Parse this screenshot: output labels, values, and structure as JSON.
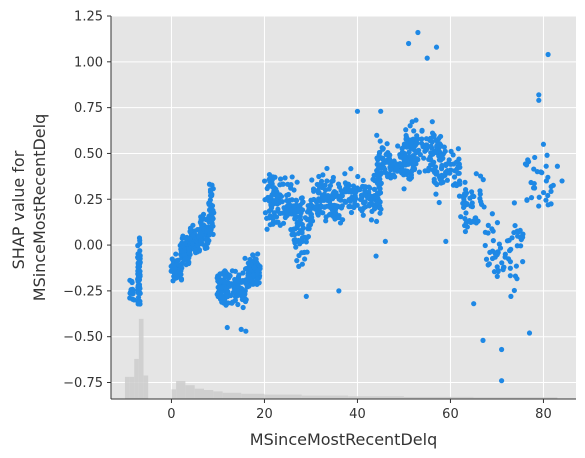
{
  "chart_data": {
    "type": "scatter",
    "xlabel": "MSinceMostRecentDelq",
    "ylabel": [
      "SHAP value for",
      "MSinceMostRecentDelq"
    ],
    "xlim": [
      -13,
      87
    ],
    "ylim": [
      -0.84,
      1.25
    ],
    "xticks": [
      0,
      20,
      40,
      60,
      80
    ],
    "xtick_labels": [
      "0",
      "20",
      "40",
      "60",
      "80"
    ],
    "yticks": [
      -0.75,
      -0.5,
      -0.25,
      0.0,
      0.25,
      0.5,
      0.75,
      1.0,
      1.25
    ],
    "ytick_labels": [
      "−0.75",
      "−0.50",
      "−0.25",
      "0.00",
      "0.25",
      "0.50",
      "0.75",
      "1.00",
      "1.25"
    ],
    "grid": true,
    "background": "#e5e5e5",
    "point_color": "#1e88e5",
    "hist_color": "#cccccc",
    "clusters": [
      {
        "x": [
          -9,
          -8
        ],
        "y_range": [
          -0.34,
          -0.17
        ],
        "count": 18
      },
      {
        "x": [
          -7,
          -7
        ],
        "y_range": [
          -0.38,
          0.08
        ],
        "count": 70
      },
      {
        "x": [
          0,
          2
        ],
        "y_range": [
          -0.22,
          -0.05
        ],
        "count": 50
      },
      {
        "x": [
          2,
          4
        ],
        "y_range": [
          -0.12,
          0.08
        ],
        "count": 70
      },
      {
        "x": [
          4,
          6
        ],
        "y_range": [
          -0.08,
          0.12
        ],
        "count": 70
      },
      {
        "x": [
          6,
          8
        ],
        "y_range": [
          -0.04,
          0.18
        ],
        "count": 70
      },
      {
        "x": [
          8,
          9
        ],
        "y_range": [
          0.0,
          0.36
        ],
        "count": 40
      },
      {
        "x": [
          10,
          12
        ],
        "y_range": [
          -0.36,
          -0.1
        ],
        "count": 70
      },
      {
        "x": [
          12,
          16
        ],
        "y_range": [
          -0.38,
          -0.12
        ],
        "count": 70
      },
      {
        "x": [
          16,
          19
        ],
        "y_range": [
          -0.28,
          -0.02
        ],
        "count": 70
      },
      {
        "x": [
          20,
          26
        ],
        "y_range": [
          0.05,
          0.42
        ],
        "count": 110
      },
      {
        "x": [
          26,
          30
        ],
        "y_range": [
          -0.12,
          0.36
        ],
        "count": 80
      },
      {
        "x": [
          30,
          37
        ],
        "y_range": [
          0.08,
          0.42
        ],
        "count": 110
      },
      {
        "x": [
          37,
          45
        ],
        "y_range": [
          0.1,
          0.45
        ],
        "count": 110
      },
      {
        "x": [
          44,
          52
        ],
        "y_range": [
          0.28,
          0.62
        ],
        "count": 110
      },
      {
        "x": [
          50,
          58
        ],
        "y_range": [
          0.35,
          0.7
        ],
        "count": 100
      },
      {
        "x": [
          56,
          62
        ],
        "y_range": [
          0.2,
          0.6
        ],
        "count": 70
      },
      {
        "x": [
          62,
          67
        ],
        "y_range": [
          0.05,
          0.45
        ],
        "count": 50
      },
      {
        "x": [
          67,
          76
        ],
        "y_range": [
          -0.28,
          0.25
        ],
        "count": 60
      },
      {
        "x": [
          76,
          82
        ],
        "y_range": [
          0.1,
          0.6
        ],
        "count": 30
      }
    ],
    "outliers": [
      {
        "x": 53,
        "y": 1.16
      },
      {
        "x": 51,
        "y": 1.1
      },
      {
        "x": 57,
        "y": 1.08
      },
      {
        "x": 81,
        "y": 1.04
      },
      {
        "x": 55,
        "y": 1.02
      },
      {
        "x": 79,
        "y": 0.82
      },
      {
        "x": 79,
        "y": 0.79
      },
      {
        "x": 45,
        "y": 0.73
      },
      {
        "x": 40,
        "y": 0.73
      },
      {
        "x": 71,
        "y": -0.74
      },
      {
        "x": 71,
        "y": -0.57
      },
      {
        "x": 67,
        "y": -0.52
      },
      {
        "x": 77,
        "y": -0.48
      },
      {
        "x": 65,
        "y": -0.32
      },
      {
        "x": 73,
        "y": -0.28
      },
      {
        "x": 15,
        "y": -0.46
      },
      {
        "x": 16,
        "y": -0.47
      },
      {
        "x": 12,
        "y": -0.45
      },
      {
        "x": 36,
        "y": -0.25
      },
      {
        "x": 29,
        "y": -0.28
      },
      {
        "x": 44,
        "y": -0.06
      },
      {
        "x": 46,
        "y": 0.02
      },
      {
        "x": 59,
        "y": 0.02
      },
      {
        "x": 84,
        "y": 0.35
      },
      {
        "x": 83,
        "y": 0.43
      },
      {
        "x": 80,
        "y": 0.55
      },
      {
        "x": 75,
        "y": 0.08
      }
    ],
    "histogram": [
      {
        "x0": -10,
        "x1": -9,
        "value": 0.16
      },
      {
        "x0": -9,
        "x1": -8,
        "value": 0.16
      },
      {
        "x0": -8,
        "x1": -7,
        "value": 0.29
      },
      {
        "x0": -7,
        "x1": -6,
        "value": 0.58
      },
      {
        "x0": -6,
        "x1": -5,
        "value": 0.17
      },
      {
        "x0": 0,
        "x1": 1,
        "value": 0.07
      },
      {
        "x0": 1,
        "x1": 3,
        "value": 0.13
      },
      {
        "x0": 3,
        "x1": 5,
        "value": 0.1
      },
      {
        "x0": 5,
        "x1": 7,
        "value": 0.075
      },
      {
        "x0": 7,
        "x1": 9,
        "value": 0.065
      },
      {
        "x0": 9,
        "x1": 11,
        "value": 0.055
      },
      {
        "x0": 11,
        "x1": 15,
        "value": 0.045
      },
      {
        "x0": 15,
        "x1": 20,
        "value": 0.038
      },
      {
        "x0": 20,
        "x1": 28,
        "value": 0.032
      },
      {
        "x0": 28,
        "x1": 38,
        "value": 0.025
      },
      {
        "x0": 38,
        "x1": 50,
        "value": 0.02
      },
      {
        "x0": 50,
        "x1": 65,
        "value": 0.015
      },
      {
        "x0": 65,
        "x1": 83,
        "value": 0.012
      }
    ]
  }
}
